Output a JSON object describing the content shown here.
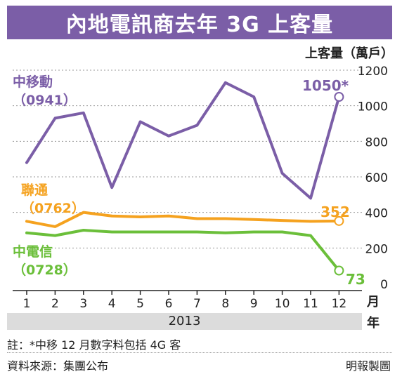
{
  "title": "內地電訊商去年 3G 上客量",
  "unit_label": "上客量（萬戶）",
  "month_unit": "月",
  "month_unit_2": "年",
  "year_label": "2013",
  "note": "註：*中移 12 月數字料包括 4G 客",
  "source": "資料來源：集團公布",
  "credit": "明報製圖",
  "chart_data": {
    "type": "line",
    "categories": [
      "1",
      "2",
      "3",
      "4",
      "5",
      "6",
      "7",
      "8",
      "9",
      "10",
      "11",
      "12"
    ],
    "ylim": [
      0,
      1200
    ],
    "yticks": [
      0,
      200,
      400,
      600,
      800,
      1000,
      1200
    ],
    "grid": true,
    "series": [
      {
        "name": "中移動",
        "code": "（0941）",
        "color": "#7b5ea7",
        "values": [
          680,
          930,
          960,
          540,
          910,
          830,
          890,
          1130,
          1050,
          620,
          480,
          1050
        ],
        "end_label": "1050*"
      },
      {
        "name": "聯通",
        "code": "（0762）",
        "color": "#f5a21f",
        "values": [
          350,
          320,
          400,
          380,
          375,
          380,
          365,
          365,
          360,
          355,
          350,
          352
        ],
        "end_label": "352"
      },
      {
        "name": "中電信",
        "code": "（0728）",
        "color": "#6bbf3a",
        "values": [
          285,
          270,
          300,
          290,
          290,
          290,
          290,
          285,
          290,
          290,
          270,
          73
        ],
        "end_label": "73"
      }
    ]
  }
}
